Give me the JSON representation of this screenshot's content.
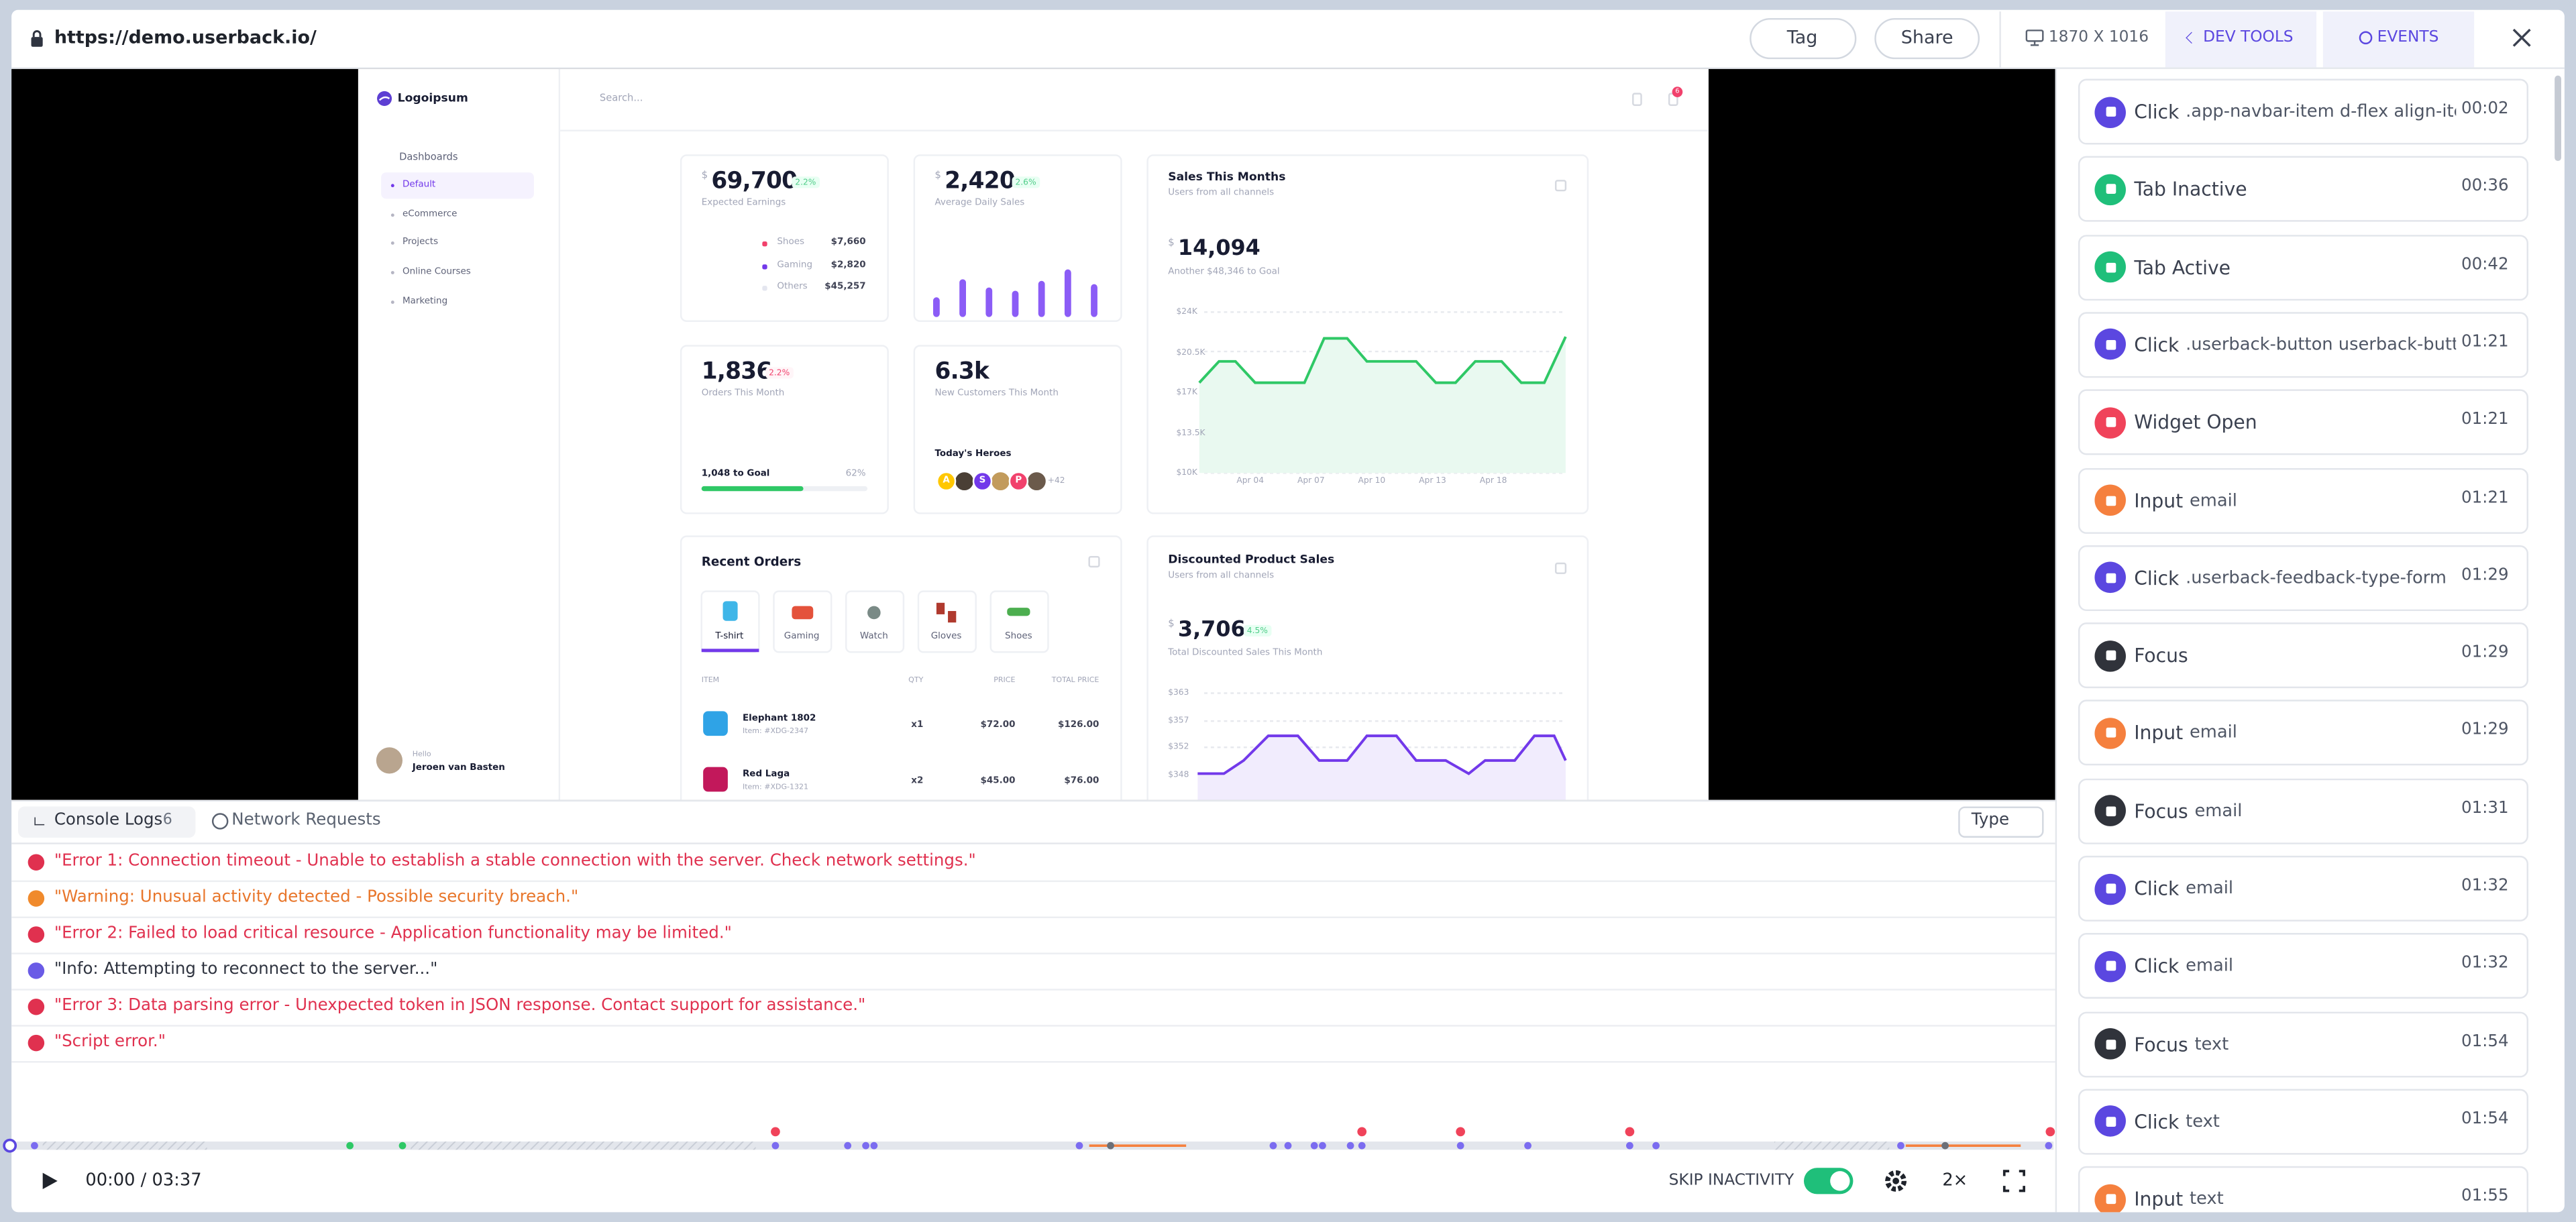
{
  "browser": {
    "url": "https://demo.userback.io/",
    "tag": "Tag",
    "share": "Share",
    "resolution": "1870 X 1016",
    "dev_tools": "DEV TOOLS",
    "events": "EVENTS"
  },
  "dashboard": {
    "brand": "Logoipsum",
    "search": "Search...",
    "notifications": "6",
    "menu": {
      "title": "Dashboards",
      "items": [
        "Default",
        "eCommerce",
        "Projects",
        "Online Courses",
        "Marketing"
      ]
    },
    "user": {
      "greeting": "Hello",
      "name": "Jeroen van Basten"
    },
    "earnings": {
      "currency": "$",
      "value": "69,700",
      "change": "2.2%",
      "label": "Expected Earnings",
      "legend": [
        {
          "name": "Shoes",
          "value": "$7,660",
          "color": "#f1416c"
        },
        {
          "name": "Gaming",
          "value": "$2,820",
          "color": "#7239ea"
        },
        {
          "name": "Others",
          "value": "$45,257",
          "color": "#e4e6ef"
        }
      ]
    },
    "daily_sales": {
      "currency": "$",
      "value": "2,420",
      "change": "2.6%",
      "label": "Average Daily Sales"
    },
    "orders": {
      "value": "1,836",
      "change": "2.2%",
      "label": "Orders This Month",
      "goal": "1,048 to Goal",
      "percent": "62%"
    },
    "customers": {
      "value": "6.3k",
      "label": "New Customers This Month",
      "heroes": "Today's Heroes",
      "avatars": [
        "A",
        "S",
        "P"
      ],
      "more": "+42"
    },
    "sales": {
      "title": "Sales This Months",
      "subtitle": "Users from all channels",
      "currency": "$",
      "value": "14,094",
      "label": "Another $48,346 to Goal",
      "yticks": [
        "$24K",
        "$20.5K",
        "$17K",
        "$13.5K",
        "$10K"
      ],
      "xticks": [
        "Apr 04",
        "Apr 07",
        "Apr 10",
        "Apr 13",
        "Apr 18"
      ]
    },
    "recent_orders": {
      "title": "Recent Orders",
      "tabs": [
        "T-shirt",
        "Gaming",
        "Watch",
        "Gloves",
        "Shoes"
      ],
      "columns": [
        "ITEM",
        "QTY",
        "PRICE",
        "TOTAL PRICE"
      ],
      "rows": [
        {
          "name": "Elephant 1802",
          "sku": "Item: #XDG-2347",
          "qty": "x1",
          "price": "$72.00",
          "total": "$126.00"
        },
        {
          "name": "Red Laga",
          "sku": "Item: #XDG-1321",
          "qty": "x2",
          "price": "$45.00",
          "total": "$76.00"
        }
      ]
    },
    "discounted": {
      "title": "Discounted Product Sales",
      "subtitle": "Users from all channels",
      "currency": "$",
      "value": "3,706",
      "change": "4.5%",
      "label": "Total Discounted Sales This Month",
      "yticks": [
        "$363",
        "$357",
        "$352",
        "$348"
      ]
    }
  },
  "console": {
    "tabs": [
      {
        "label": "Console Logs",
        "count": "6"
      },
      {
        "label": "Network Requests"
      }
    ],
    "filter": "Type",
    "logs": [
      {
        "text": "\"Error 1: Connection timeout - Unable to establish a stable connection with the server. Check network settings.\"",
        "color": "#e0314f",
        "icon_color": "#e0314f"
      },
      {
        "text": "\"Warning: Unusual activity detected - Possible security breach.\"",
        "color": "#e8762b",
        "icon_color": "#f08a2c"
      },
      {
        "text": "\"Error 2: Failed to load critical resource - Application functionality may be limited.\"",
        "color": "#e0314f",
        "icon_color": "#e0314f"
      },
      {
        "text": "\"Info: Attempting to reconnect to the server...\"",
        "color": "#2f3440",
        "icon_color": "#6a5be6"
      },
      {
        "text": "\"Error 3: Data parsing error - Unexpected token in JSON response. Contact support for assistance.\"",
        "color": "#e0314f",
        "icon_color": "#e0314f"
      },
      {
        "text": "\"Script error.\"",
        "color": "#e0314f",
        "icon_color": "#e0314f"
      }
    ]
  },
  "events": [
    {
      "action": "Click",
      "detail": ".app-navbar-item d-flex align-ite...",
      "time": "00:02",
      "color": "#5b47e0"
    },
    {
      "action": "Tab Inactive",
      "time": "00:36",
      "color": "#1fbf7a"
    },
    {
      "action": "Tab Active",
      "time": "00:42",
      "color": "#1fbf7a"
    },
    {
      "action": "Click",
      "detail": ".userback-button userback-butto...",
      "time": "01:21",
      "color": "#5b47e0"
    },
    {
      "action": "Widget Open",
      "time": "01:21",
      "color": "#f0435a"
    },
    {
      "action": "Input",
      "detail": "email",
      "time": "01:21",
      "color": "#f5803e"
    },
    {
      "action": "Click",
      "detail": ".userback-feedback-type-form",
      "time": "01:29",
      "color": "#5b47e0"
    },
    {
      "action": "Focus",
      "time": "01:29",
      "color": "#30333b"
    },
    {
      "action": "Input",
      "detail": "email",
      "time": "01:29",
      "color": "#f5803e"
    },
    {
      "action": "Focus",
      "detail": "email",
      "time": "01:31",
      "color": "#30333b"
    },
    {
      "action": "Click",
      "detail": "email",
      "time": "01:32",
      "color": "#5b47e0"
    },
    {
      "action": "Click",
      "detail": "email",
      "time": "01:32",
      "color": "#5b47e0"
    },
    {
      "action": "Focus",
      "detail": "text",
      "time": "01:54",
      "color": "#30333b"
    },
    {
      "action": "Click",
      "detail": "text",
      "time": "01:54",
      "color": "#5b47e0"
    },
    {
      "action": "Input",
      "detail": "text",
      "time": "01:55",
      "color": "#f5803e"
    }
  ],
  "player": {
    "time": "00:00 / 03:37",
    "skip": "SKIP INACTIVITY",
    "speed": "2×"
  }
}
